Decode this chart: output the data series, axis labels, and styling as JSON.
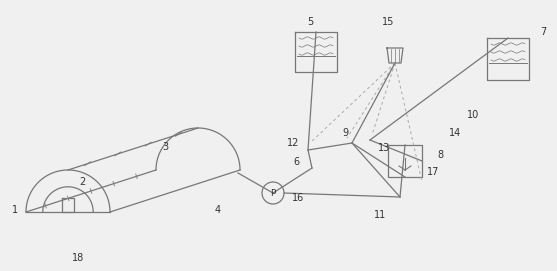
{
  "bg_color": "#f0f0f0",
  "line_color": "#777777",
  "dashed_color": "#aaaaaa",
  "label_color": "#333333",
  "figsize": [
    5.57,
    2.71
  ],
  "dpi": 100
}
